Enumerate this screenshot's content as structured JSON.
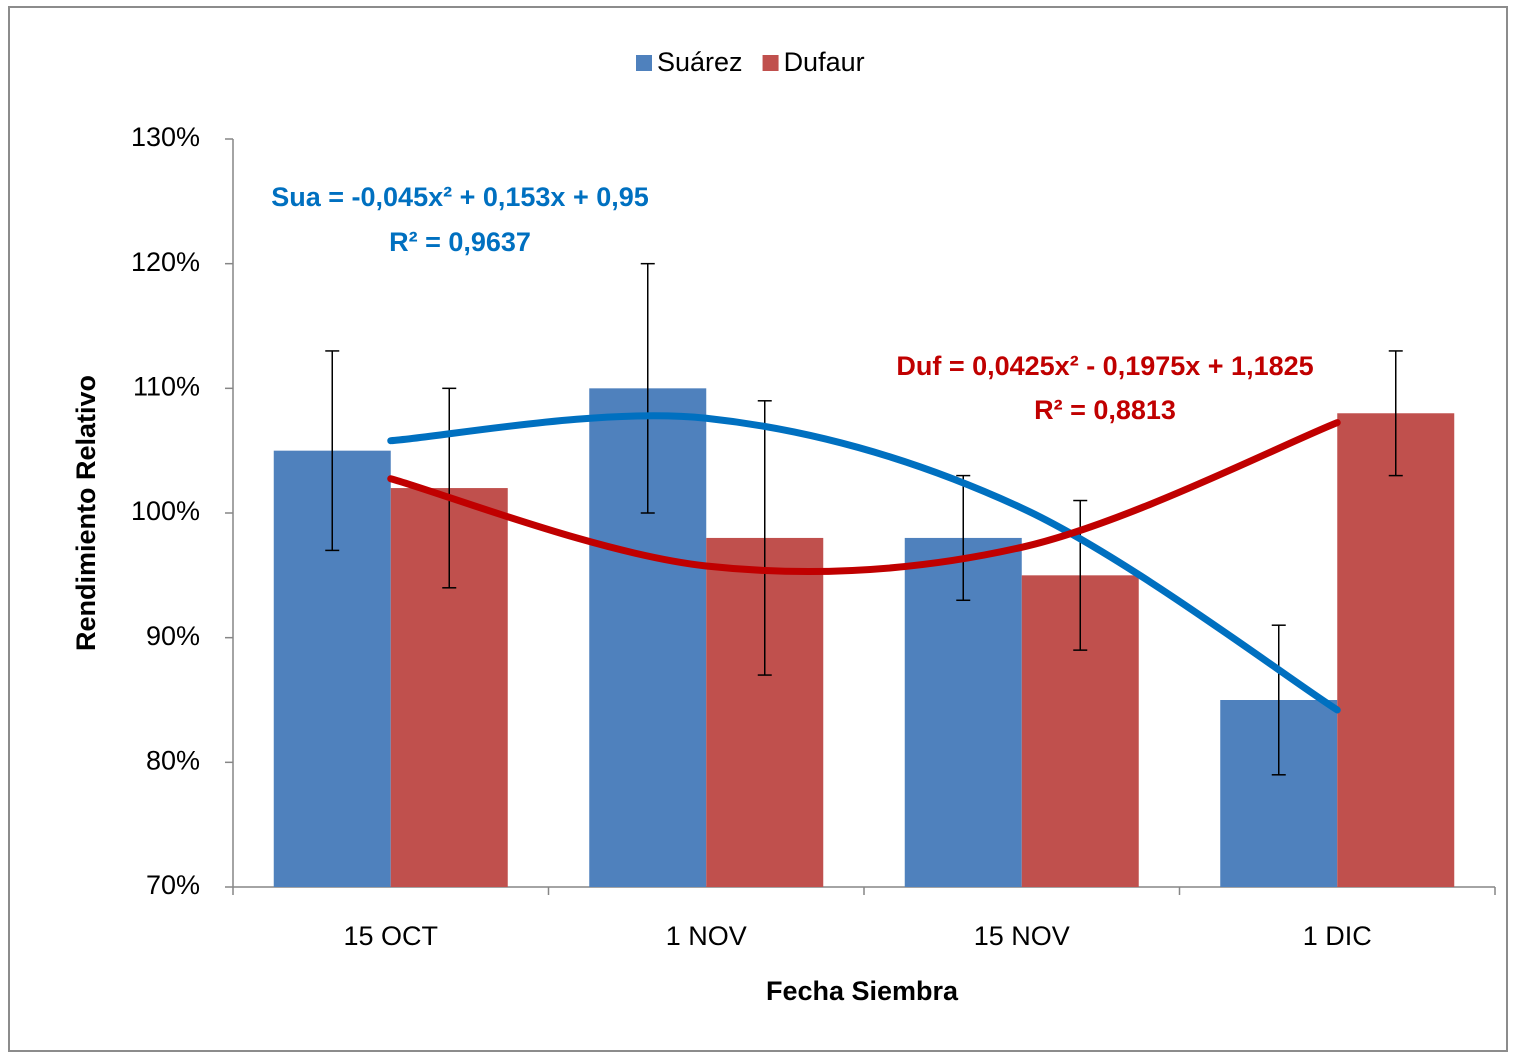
{
  "chart_data": {
    "type": "bar",
    "x_label": "Fecha Siembra",
    "y_label": "Rendimiento Relativo",
    "categories": [
      "15 OCT",
      "1 NOV",
      "15 NOV",
      "1 DIC"
    ],
    "series": [
      {
        "name": "Suárez",
        "color": "#4f81bd",
        "values": [
          105,
          110,
          98,
          85
        ],
        "errors": [
          8,
          10,
          5,
          6
        ],
        "trend": {
          "color": "#0070c0",
          "values": [
            105.8,
            107.6,
            100.4,
            84.2
          ],
          "equation": "Sua = -0,045x² + 0,153x + 0,95",
          "r2": "R² = 0,9637"
        }
      },
      {
        "name": "Dufaur",
        "color": "#c0504d",
        "values": [
          102,
          98,
          95,
          108
        ],
        "errors": [
          8,
          11,
          6,
          5
        ],
        "trend": {
          "color": "#c00000",
          "values": [
            102.75,
            95.75,
            97.25,
            107.25
          ],
          "equation": "Duf = 0,0425x² - 0,1975x + 1,1825",
          "r2": "R² = 0,8813"
        }
      }
    ],
    "ylim": [
      70,
      130
    ],
    "yticks": [
      {
        "value": 70,
        "label": "70%"
      },
      {
        "value": 80,
        "label": "80%"
      },
      {
        "value": 90,
        "label": "90%"
      },
      {
        "value": 100,
        "label": "100%"
      },
      {
        "value": 110,
        "label": "110%"
      },
      {
        "value": 120,
        "label": "120%"
      },
      {
        "value": 130,
        "label": "130%"
      }
    ],
    "legend": "top"
  }
}
